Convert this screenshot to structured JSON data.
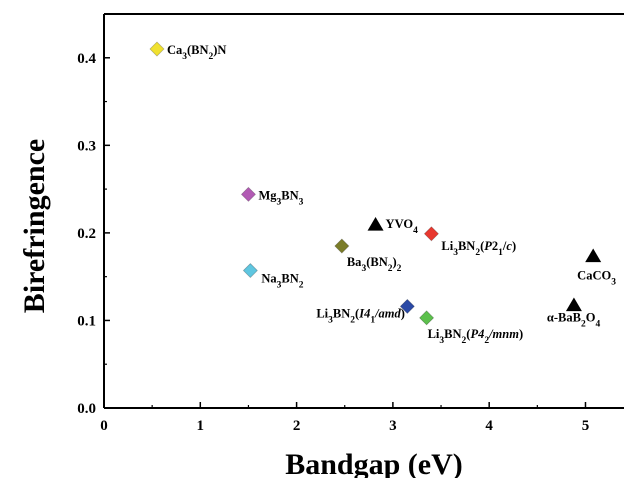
{
  "chart_data": {
    "type": "scatter",
    "title": "",
    "xlabel": "Bandgap (eV)",
    "ylabel": "Birefringence",
    "xlim": [
      0,
      5.4
    ],
    "ylim": [
      0,
      0.45
    ],
    "x_ticks": [
      0,
      1,
      2,
      3,
      4,
      5
    ],
    "y_ticks": [
      0.0,
      0.1,
      0.2,
      0.3,
      0.4
    ],
    "x_tick_labels": [
      "0",
      "1",
      "2",
      "3",
      "4",
      "5"
    ],
    "y_tick_labels": [
      "0.0",
      "0.1",
      "0.2",
      "0.3",
      "0.4"
    ],
    "grid": false,
    "legend": "none",
    "points": [
      {
        "x": 0.55,
        "y": 0.41,
        "marker": "diamond",
        "color": "#f0e130",
        "label": [
          [
            "Ca",
            ""
          ],
          [
            "3",
            "sub"
          ],
          [
            "(BN",
            ""
          ],
          [
            "2",
            "sub"
          ],
          [
            ")N",
            ""
          ]
        ]
      },
      {
        "x": 1.5,
        "y": 0.244,
        "marker": "diamond",
        "color": "#b25bb4",
        "label": [
          [
            "Mg",
            ""
          ],
          [
            "3",
            "sub"
          ],
          [
            "BN",
            ""
          ],
          [
            "3",
            "sub"
          ]
        ]
      },
      {
        "x": 1.52,
        "y": 0.157,
        "marker": "diamond",
        "color": "#5fc6e0",
        "label": [
          [
            "Na",
            ""
          ],
          [
            "3",
            "sub"
          ],
          [
            "BN",
            ""
          ],
          [
            "2",
            "sub"
          ]
        ]
      },
      {
        "x": 2.47,
        "y": 0.185,
        "marker": "diamond",
        "color": "#7b7d2a",
        "label": [
          [
            "Ba",
            ""
          ],
          [
            "3",
            "sub"
          ],
          [
            "(BN",
            ""
          ],
          [
            "2",
            "sub"
          ],
          [
            ")",
            ""
          ],
          [
            "2",
            "sub"
          ]
        ]
      },
      {
        "x": 2.82,
        "y": 0.209,
        "marker": "triangle",
        "color": "#000000",
        "label": [
          [
            "YVO",
            ""
          ],
          [
            "4",
            "sub"
          ]
        ]
      },
      {
        "x": 3.4,
        "y": 0.199,
        "marker": "diamond",
        "color": "#e8382f",
        "label": [
          [
            "Li",
            ""
          ],
          [
            "3",
            "sub"
          ],
          [
            "BN",
            ""
          ],
          [
            "2",
            "sub"
          ],
          [
            "(",
            ""
          ],
          [
            "P",
            "i"
          ],
          [
            "2",
            "",
            ""
          ],
          [
            "1",
            "sub"
          ],
          [
            "/",
            ""
          ],
          [
            "c",
            "i"
          ],
          [
            ")",
            ""
          ]
        ]
      },
      {
        "x": 3.15,
        "y": 0.116,
        "marker": "diamond",
        "color": "#2b4aa6",
        "label": [
          [
            "Li",
            ""
          ],
          [
            "3",
            "sub"
          ],
          [
            "BN",
            ""
          ],
          [
            "2",
            "sub"
          ],
          [
            "(",
            ""
          ],
          [
            "I",
            "i"
          ],
          [
            "4",
            "i"
          ],
          [
            "1",
            "sub"
          ],
          [
            "/amd",
            "i"
          ],
          [
            ")",
            ""
          ]
        ]
      },
      {
        "x": 3.35,
        "y": 0.103,
        "marker": "diamond",
        "color": "#5cc04c",
        "label": [
          [
            "Li",
            ""
          ],
          [
            "3",
            "sub"
          ],
          [
            "BN",
            ""
          ],
          [
            "2",
            "sub"
          ],
          [
            "(",
            ""
          ],
          [
            "P",
            "i"
          ],
          [
            "4",
            "i"
          ],
          [
            "2",
            "sub"
          ],
          [
            "/mnm",
            "i"
          ],
          [
            ")",
            ""
          ]
        ]
      },
      {
        "x": 5.08,
        "y": 0.173,
        "marker": "triangle",
        "color": "#000000",
        "label": [
          [
            "CaCO",
            ""
          ],
          [
            "3",
            "sub"
          ]
        ]
      },
      {
        "x": 4.88,
        "y": 0.117,
        "marker": "triangle",
        "color": "#000000",
        "label": [
          [
            "α-BaB",
            ""
          ],
          [
            "2",
            "sub"
          ],
          [
            "O",
            ""
          ],
          [
            "4",
            "sub"
          ]
        ]
      }
    ]
  }
}
